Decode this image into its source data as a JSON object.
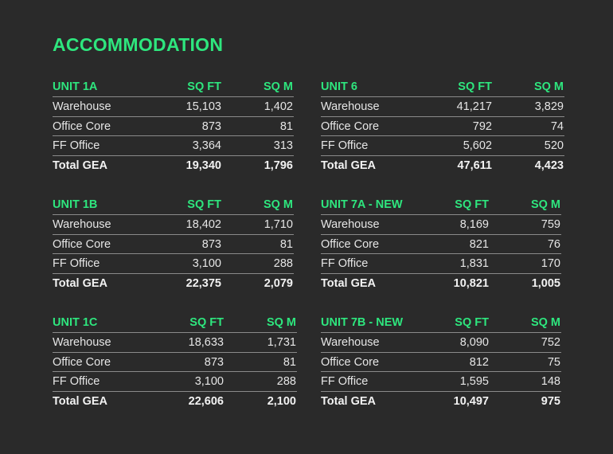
{
  "title": "ACCOMMODATION",
  "units": [
    {
      "name": "UNIT 1A",
      "col_sqft": "SQ FT",
      "col_sqm": "SQ M",
      "rows": [
        {
          "label": "Warehouse",
          "sqft": "15,103",
          "sqm": "1,402"
        },
        {
          "label": "Office Core",
          "sqft": "873",
          "sqm": "81"
        },
        {
          "label": "FF Office",
          "sqft": "3,364",
          "sqm": "313"
        },
        {
          "label": "Total GEA",
          "sqft": "19,340",
          "sqm": "1,796"
        }
      ]
    },
    {
      "name": "UNIT 6",
      "col_sqft": "SQ FT",
      "col_sqm": "SQ M",
      "rows": [
        {
          "label": "Warehouse",
          "sqft": "41,217",
          "sqm": "3,829"
        },
        {
          "label": "Office Core",
          "sqft": "792",
          "sqm": "74"
        },
        {
          "label": "FF Office",
          "sqft": "5,602",
          "sqm": "520"
        },
        {
          "label": "Total GEA",
          "sqft": "47,611",
          "sqm": "4,423"
        }
      ]
    },
    {
      "name": "UNIT 1B",
      "col_sqft": "SQ FT",
      "col_sqm": "SQ M",
      "rows": [
        {
          "label": "Warehouse",
          "sqft": "18,402",
          "sqm": "1,710"
        },
        {
          "label": "Office Core",
          "sqft": "873",
          "sqm": "81"
        },
        {
          "label": "FF Office",
          "sqft": "3,100",
          "sqm": "288"
        },
        {
          "label": "Total GEA",
          "sqft": "22,375",
          "sqm": "2,079"
        }
      ]
    },
    {
      "name": "UNIT 7A - NEW",
      "col_sqft": "SQ FT",
      "col_sqm": "SQ M",
      "rows": [
        {
          "label": "Warehouse",
          "sqft": "8,169",
          "sqm": "759"
        },
        {
          "label": "Office Core",
          "sqft": "821",
          "sqm": "76"
        },
        {
          "label": "FF Office",
          "sqft": "1,831",
          "sqm": "170"
        },
        {
          "label": "Total GEA",
          "sqft": "10,821",
          "sqm": "1,005"
        }
      ]
    },
    {
      "name": "UNIT 1C",
      "col_sqft": "SQ FT",
      "col_sqm": "SQ M",
      "rows": [
        {
          "label": "Warehouse",
          "sqft": "18,633",
          "sqm": "1,731"
        },
        {
          "label": "Office Core",
          "sqft": "873",
          "sqm": "81"
        },
        {
          "label": "FF Office",
          "sqft": "3,100",
          "sqm": "288"
        },
        {
          "label": "Total GEA",
          "sqft": "22,606",
          "sqm": "2,100"
        }
      ]
    },
    {
      "name": "UNIT 7B - NEW",
      "col_sqft": "SQ FT",
      "col_sqm": "SQ M",
      "rows": [
        {
          "label": "Warehouse",
          "sqft": "8,090",
          "sqm": "752"
        },
        {
          "label": "Office Core",
          "sqft": "812",
          "sqm": "75"
        },
        {
          "label": "FF Office",
          "sqft": "1,595",
          "sqm": "148"
        },
        {
          "label": "Total GEA",
          "sqft": "10,497",
          "sqm": "975"
        }
      ]
    }
  ]
}
